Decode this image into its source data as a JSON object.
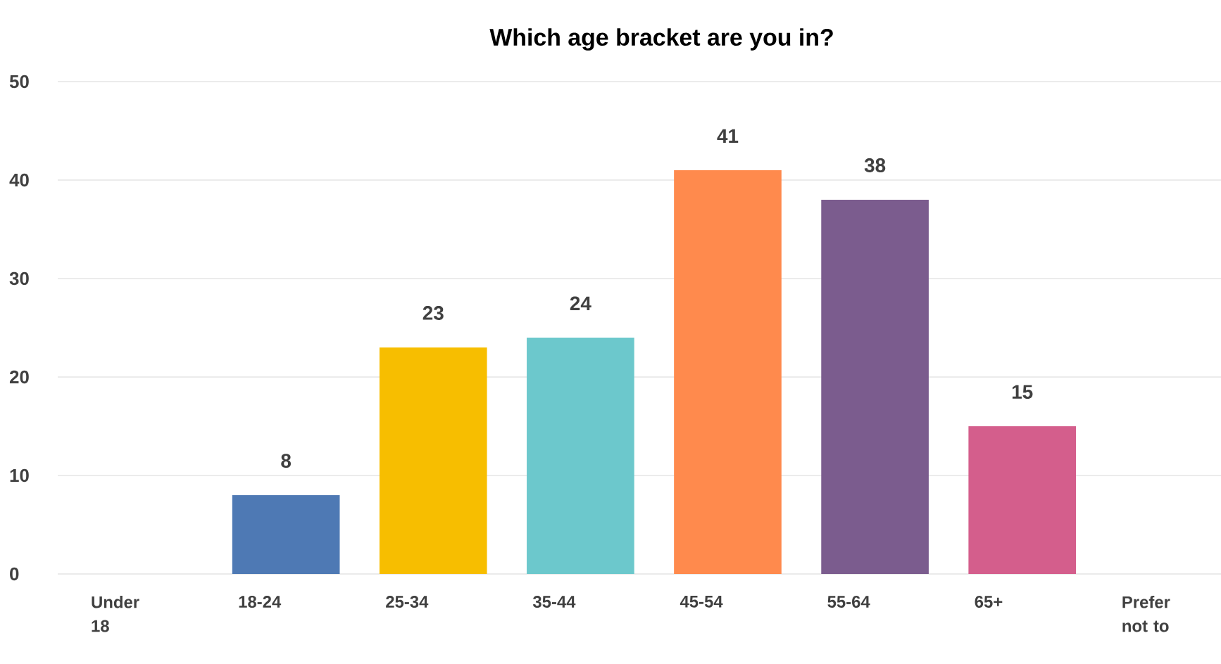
{
  "chart_data": {
    "type": "bar",
    "title": "Which age bracket are you in?",
    "categories": [
      "Under 18",
      "18-24",
      "25-34",
      "35-44",
      "45-54",
      "55-64",
      "65+",
      "Prefer not to"
    ],
    "values": [
      0,
      8,
      23,
      24,
      41,
      38,
      15,
      0
    ],
    "value_labels": [
      null,
      "8",
      "23",
      "24",
      "41",
      "38",
      "15",
      null
    ],
    "colors": [
      "#4e79b4",
      "#4e79b4",
      "#f7be00",
      "#6cc8cc",
      "#ff8a4d",
      "#7b5c8e",
      "#d45e8c",
      "#d45e8c"
    ],
    "ylim": [
      0,
      50
    ],
    "yticks": [
      0,
      10,
      20,
      30,
      40,
      50
    ],
    "grid": "y"
  }
}
